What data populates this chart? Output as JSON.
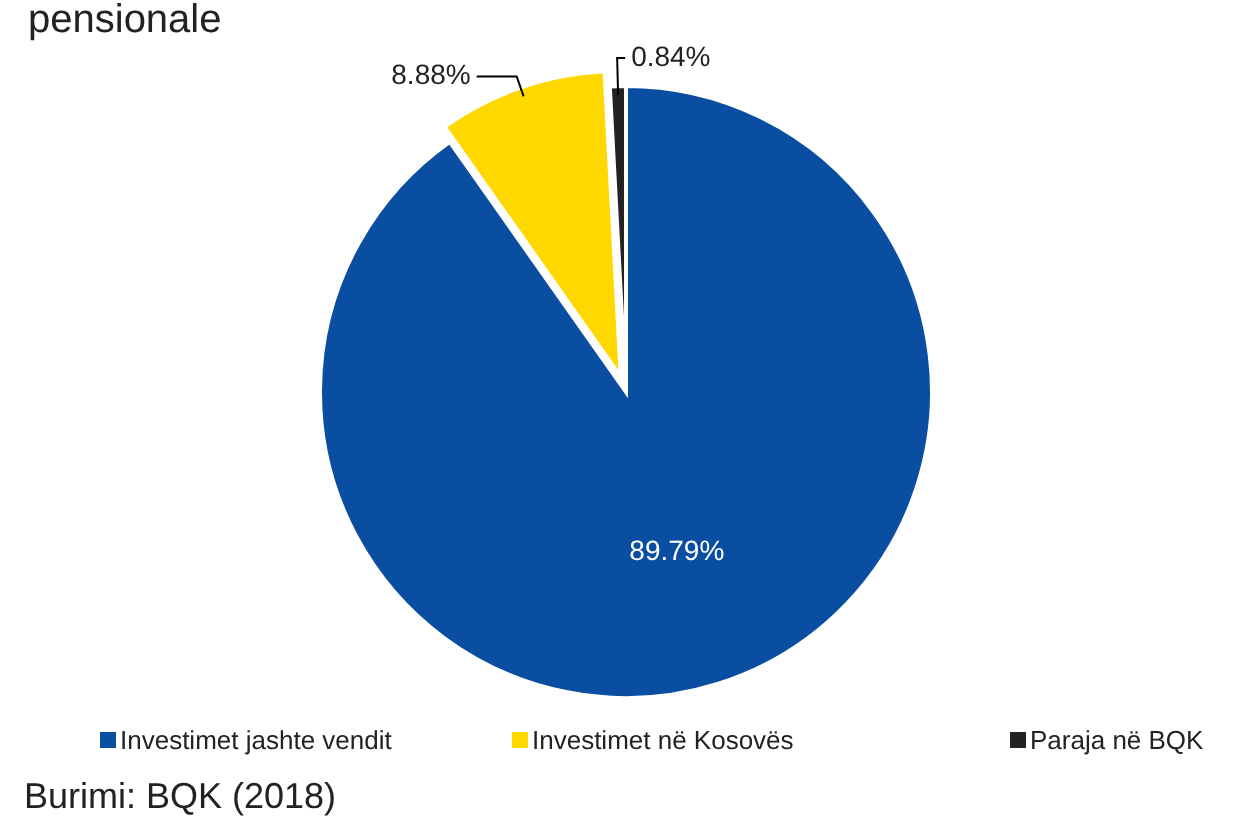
{
  "chart_data": {
    "type": "pie",
    "title": "pensionale",
    "categories": [
      "Investimet jashte vendit",
      "Investimet në Kosovës",
      "Paraja në BQK"
    ],
    "values": [
      89.79,
      8.88,
      0.84
    ],
    "colors": [
      "#0a4ea2",
      "#ffd800",
      "#222222"
    ],
    "value_labels": [
      "89.79%",
      "8.88%",
      "0.84%"
    ],
    "legend": "bottom",
    "annotations": [
      "Burimi: BQK (2018)"
    ]
  }
}
